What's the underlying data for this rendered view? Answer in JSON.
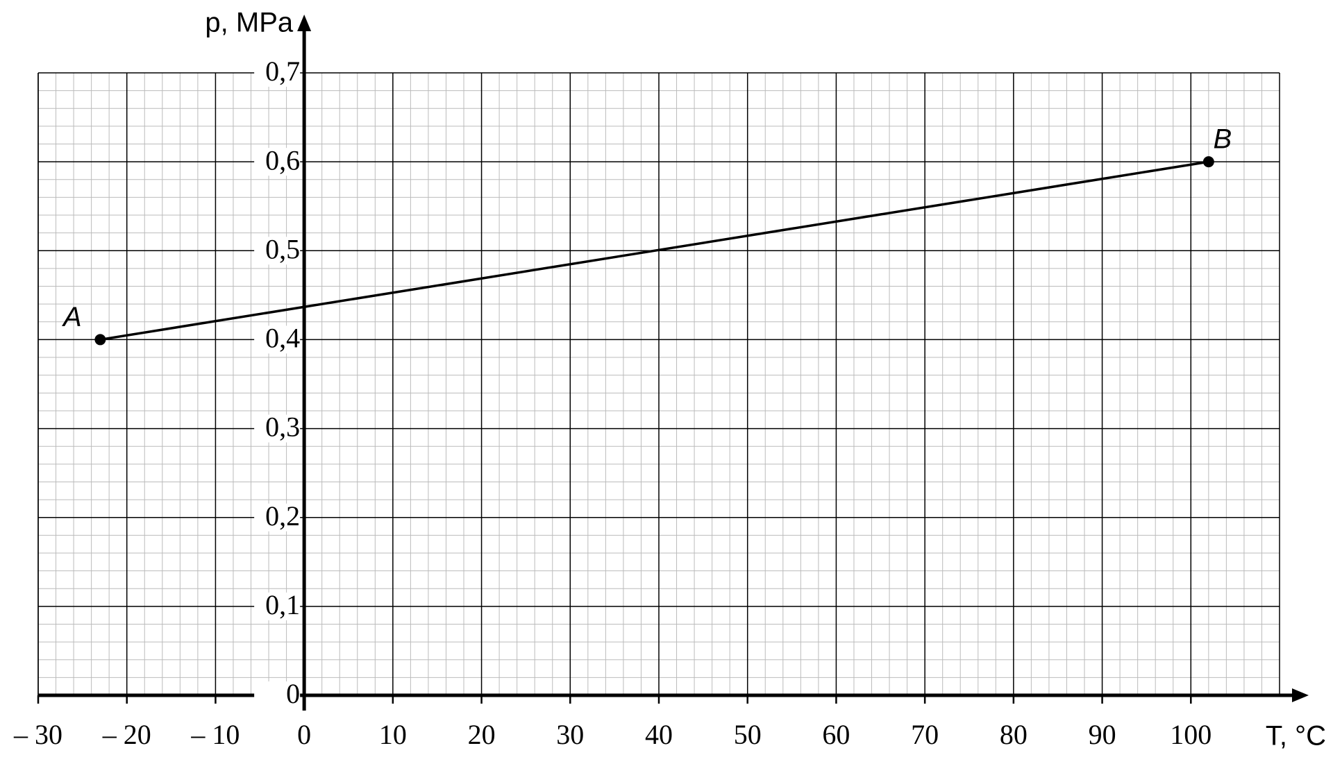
{
  "chart_data": {
    "type": "line",
    "xlabel": "T, °C",
    "ylabel": "p, MPa",
    "x": [
      -23,
      102
    ],
    "series": [
      {
        "color": "#000000",
        "values": [
          0.4,
          0.6
        ]
      }
    ],
    "annotations": [
      "A",
      "B"
    ],
    "xlim": [
      -30,
      110
    ],
    "xticks": [
      {
        "value": -30,
        "label": "– 30"
      },
      {
        "value": -20,
        "label": "– 20"
      },
      {
        "value": -10,
        "label": "– 10"
      },
      0,
      10,
      20,
      30,
      40,
      50,
      60,
      70,
      80,
      90,
      100
    ],
    "ylim": [
      0,
      0.7
    ],
    "yticks": [
      0,
      {
        "value": 0.1,
        "label": "0,1"
      },
      {
        "value": 0.2,
        "label": "0,2"
      },
      {
        "value": 0.3,
        "label": "0,3"
      },
      {
        "value": 0.4,
        "label": "0,4"
      },
      {
        "value": 0.5,
        "label": "0,5"
      },
      {
        "value": 0.6,
        "label": "0,6"
      },
      {
        "value": 0.7,
        "label": "0,7"
      }
    ],
    "grid": true
  }
}
